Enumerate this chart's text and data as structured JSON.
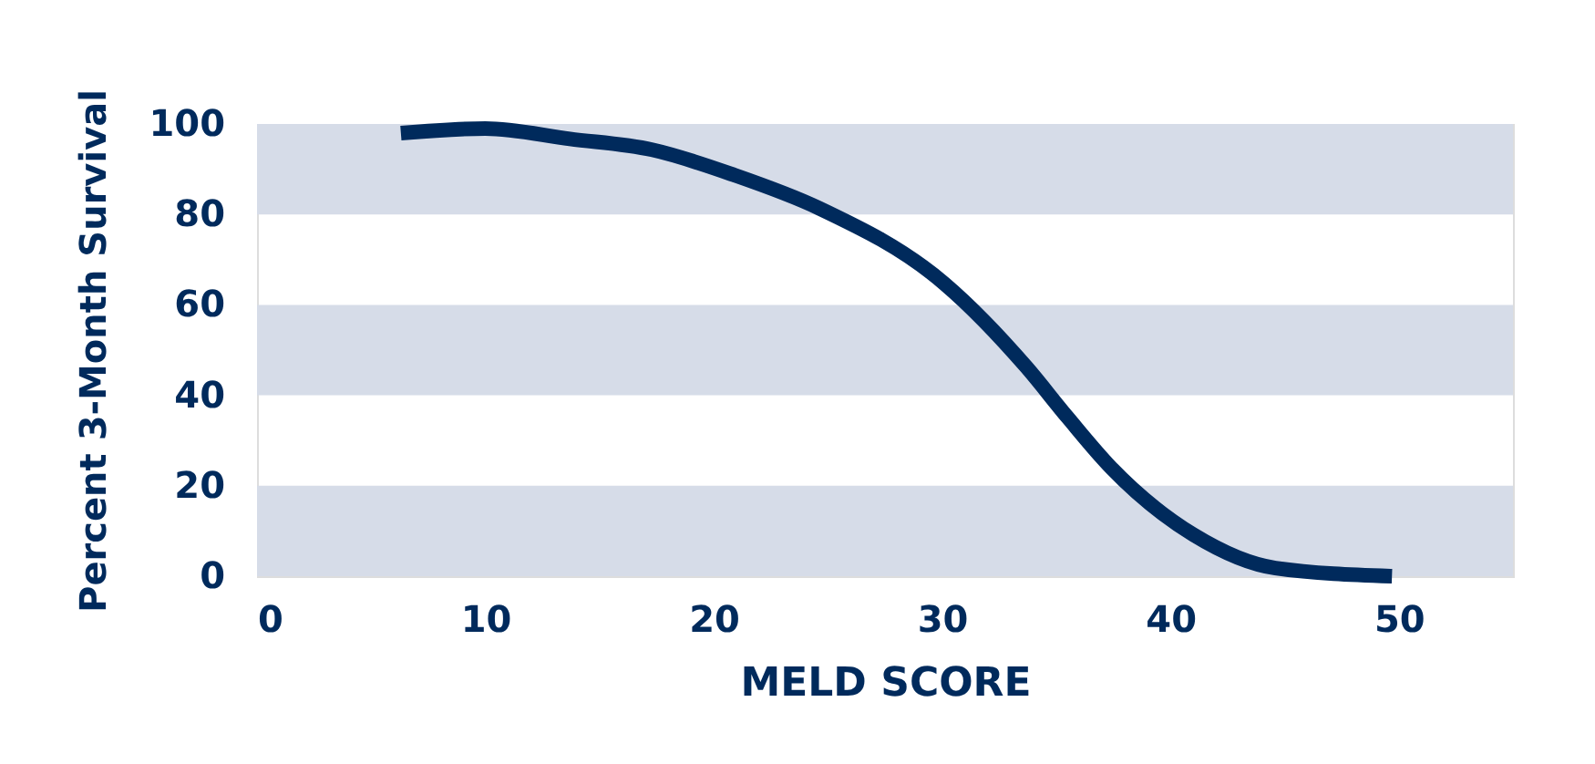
{
  "chart_data": {
    "type": "line",
    "xlabel": "MELD SCORE",
    "ylabel": "Percent 3-Month Survival",
    "x": [
      6.3,
      10.0,
      13.7,
      17.3,
      20.9,
      24.6,
      30.1,
      33.7,
      35.5,
      37.4,
      41.0,
      44.6,
      49.7
    ],
    "series": [
      {
        "color": "#002a5c",
        "values": [
          98,
          99,
          96.7,
          94.3,
          88.7,
          81.4,
          64.7,
          46.2,
          35.1,
          24,
          9.2,
          1.8,
          0
        ]
      }
    ],
    "xlim": [
      0,
      55
    ],
    "xticks": [
      0,
      10,
      20,
      30,
      40,
      50
    ],
    "ylim": [
      0,
      100
    ],
    "yticks": [
      0,
      20,
      40,
      60,
      80,
      100
    ],
    "bands": [
      {
        "axis": "y",
        "from": 0,
        "to": 20,
        "color": "#d6dce8"
      },
      {
        "axis": "y",
        "from": 40,
        "to": 60,
        "color": "#d6dce8"
      },
      {
        "axis": "y",
        "from": 80,
        "to": 100,
        "color": "#d6dce8"
      }
    ],
    "grid": false,
    "marker": "none",
    "line_style": "solid"
  }
}
